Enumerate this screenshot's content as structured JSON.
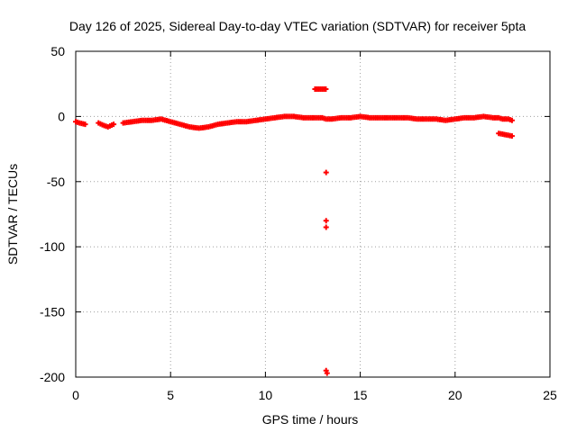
{
  "chart_data": {
    "type": "scatter",
    "title": "Day 126 of 2025, Sidereal Day-to-day VTEC variation (SDTVAR) for receiver 5pta",
    "xlabel": "GPS time / hours",
    "ylabel": "SDTVAR / TECUs",
    "xlim": [
      0,
      25
    ],
    "ylim": [
      -200,
      50
    ],
    "x_ticks": [
      0,
      5,
      10,
      15,
      20,
      25
    ],
    "y_ticks": [
      50,
      0,
      -50,
      -100,
      -150,
      -200
    ],
    "grid": true,
    "marker": "+",
    "series": [
      {
        "name": "SDTVAR",
        "color": "#ff0000",
        "x": [
          0.0,
          0.2,
          0.5,
          1.2,
          1.5,
          1.7,
          2.0,
          2.5,
          3.0,
          3.5,
          4.0,
          4.5,
          5.0,
          5.5,
          6.0,
          6.5,
          7.0,
          7.5,
          8.0,
          8.5,
          9.0,
          9.5,
          10.0,
          10.5,
          11.0,
          11.5,
          12.0,
          12.5,
          12.8,
          13.0,
          13.2,
          13.5,
          14.0,
          14.5,
          15.0,
          15.5,
          16.0,
          16.5,
          17.0,
          17.5,
          18.0,
          18.5,
          19.0,
          19.5,
          20.0,
          20.5,
          21.0,
          21.5,
          22.0,
          22.3,
          22.5,
          22.8,
          23.0,
          12.9,
          13.2,
          13.2,
          13.2,
          13.2,
          13.25
        ],
        "y": [
          -4,
          -5,
          -6,
          -5,
          -7,
          -8,
          -6,
          -5,
          -4,
          -3,
          -3,
          -2,
          -4,
          -6,
          -8,
          -9,
          -8,
          -6,
          -5,
          -4,
          -4,
          -3,
          -2,
          -1,
          0,
          0,
          -1,
          -1,
          -1,
          -1,
          -2,
          -2,
          -1,
          -1,
          0,
          -1,
          -1,
          -1,
          -1,
          -1,
          -2,
          -2,
          -2,
          -3,
          -2,
          -1,
          -1,
          0,
          -1,
          -1,
          -2,
          -2,
          -3,
          21,
          -43,
          -80,
          -85,
          -195,
          -197
        ],
        "extra_segment": {
          "x": [
            22.3,
            23.0
          ],
          "y": [
            -13,
            -15
          ]
        }
      }
    ]
  }
}
